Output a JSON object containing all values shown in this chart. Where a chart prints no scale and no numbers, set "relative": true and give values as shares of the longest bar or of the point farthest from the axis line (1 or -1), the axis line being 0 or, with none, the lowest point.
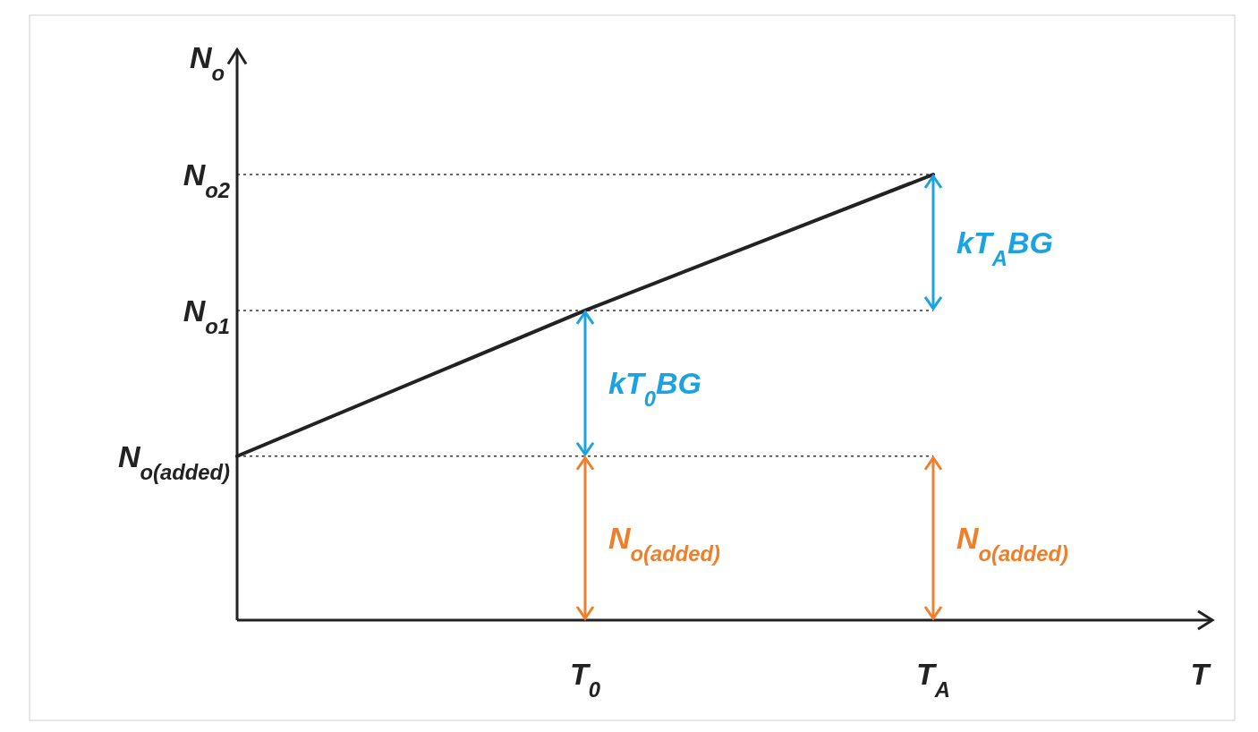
{
  "chart_data": {
    "type": "line",
    "relative": true,
    "ylabel": "N$_{o}$",
    "categories": [
      null,
      "T$_{0}$",
      "T$_{A}$"
    ],
    "series": [
      {
        "color": "#222222",
        "values": [
          0.368,
          0.695,
          1
        ]
      }
    ],
    "ref_lines": [
      {
        "axis": "y",
        "value": 0.368,
        "label": "N$_{o(added)}$",
        "line_style": "dotted"
      },
      {
        "axis": "y",
        "value": 0.695,
        "label": "N$_{o1}$",
        "line_style": "dotted"
      },
      {
        "axis": "y",
        "value": 1,
        "label": "N$_{o2}$",
        "line_style": "dotted"
      }
    ],
    "annotations": [
      "T",
      {
        "text": "kT$_{0}$BG",
        "x": "T$_{0}$",
        "y": 0.695
      },
      {
        "text": "kT$_{A}$BG",
        "x": "T$_{A}$",
        "y": 1
      },
      {
        "text": "N$_{o(added)}$",
        "x": "T$_{0}$",
        "y": 0.368
      },
      {
        "text": "N$_{o(added)}$",
        "x": "T$_{A}$",
        "y": 0.368
      }
    ],
    "marker": "none",
    "line_style": "solid"
  }
}
